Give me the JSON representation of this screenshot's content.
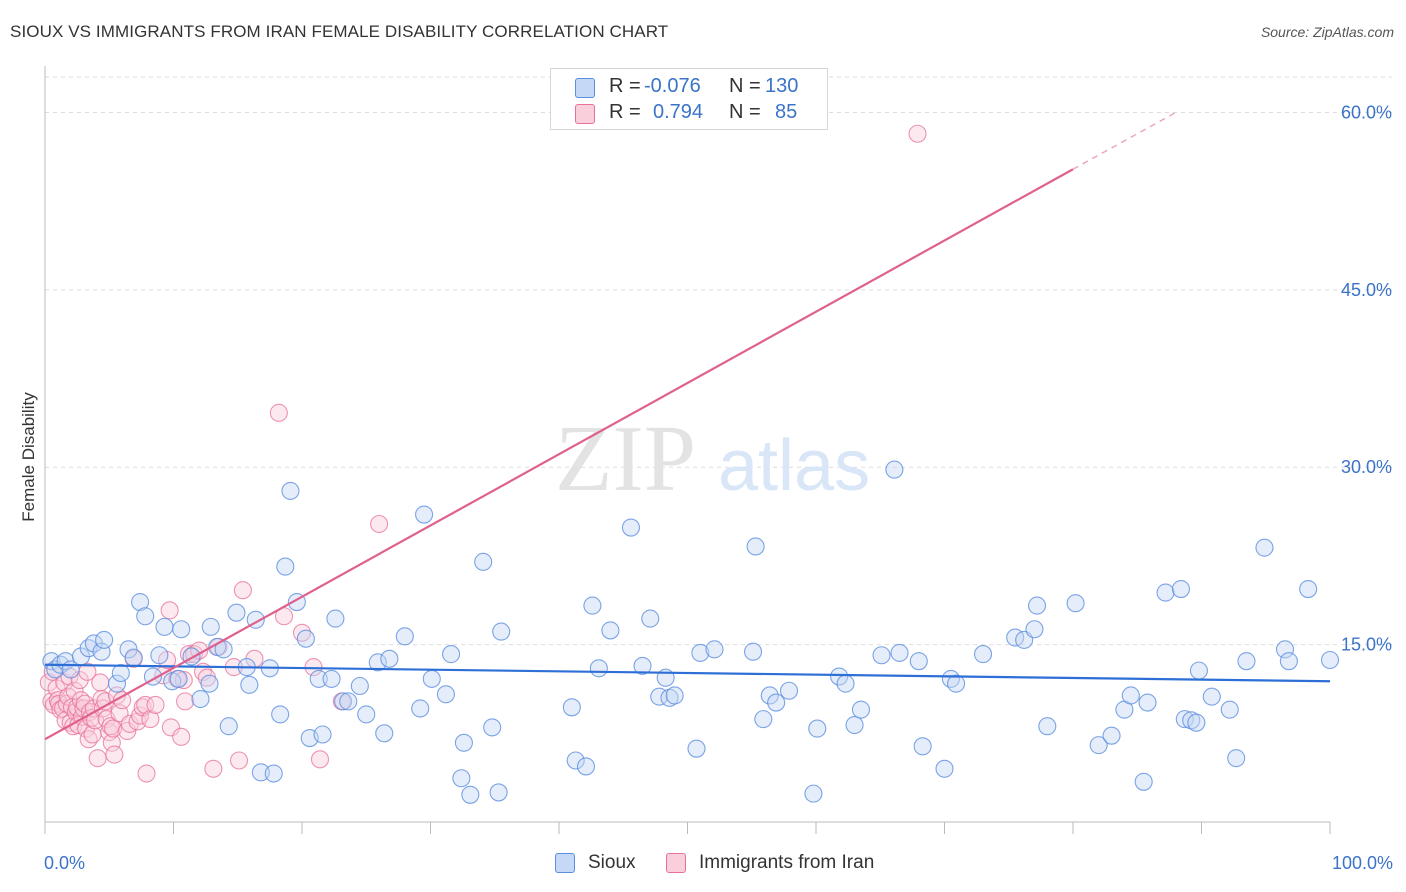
{
  "title": "SIOUX VS IMMIGRANTS FROM IRAN FEMALE DISABILITY CORRELATION CHART",
  "source": "Source: ZipAtlas.com",
  "watermark": {
    "zip": "ZIP",
    "atlas": "atlas"
  },
  "colors": {
    "sioux": "#5b8fe0",
    "sioux_fill": "#c5d8f5",
    "iran": "#e8709a",
    "iran_fill": "#f9cfdc",
    "axis_text": "#3b73c9",
    "grid": "#dddddd"
  },
  "legend_top": {
    "rows": [
      {
        "series": "Sioux",
        "r_label": "R =",
        "r_value": "-0.076",
        "n_label": "N =",
        "n_value": "130"
      },
      {
        "series": "Immigrants from Iran",
        "r_label": "R =",
        "r_value": "0.794",
        "n_label": "N =",
        "n_value": "85"
      }
    ]
  },
  "legend_bottom": [
    "Sioux",
    "Immigrants from Iran"
  ],
  "chart_data": {
    "type": "scatter",
    "title": "SIOUX VS IMMIGRANTS FROM IRAN FEMALE DISABILITY CORRELATION CHART",
    "xlabel": "",
    "ylabel": "Female Disability",
    "xlim": [
      0,
      100
    ],
    "ylim": [
      0,
      63
    ],
    "x_tick_labels": [
      "0.0%",
      "100.0%"
    ],
    "y_ticks": [
      15,
      30,
      45,
      60
    ],
    "y_tick_labels": [
      "15.0%",
      "30.0%",
      "45.0%",
      "60.0%"
    ],
    "grid": true,
    "series": [
      {
        "name": "Sioux",
        "r": -0.076,
        "n": 130,
        "trend": {
          "x0": 0,
          "y0": 13.3,
          "x1": 100,
          "y1": 11.9
        },
        "points": [
          [
            0.5,
            13.6
          ],
          [
            0.8,
            12.9
          ],
          [
            1.2,
            13.3
          ],
          [
            1.6,
            13.6
          ],
          [
            2.0,
            12.9
          ],
          [
            2.8,
            14.0
          ],
          [
            3.4,
            14.7
          ],
          [
            3.8,
            15.1
          ],
          [
            4.4,
            14.4
          ],
          [
            4.6,
            15.4
          ],
          [
            5.6,
            11.7
          ],
          [
            5.9,
            12.6
          ],
          [
            6.5,
            14.6
          ],
          [
            6.9,
            13.9
          ],
          [
            7.4,
            18.6
          ],
          [
            7.8,
            17.4
          ],
          [
            8.4,
            12.3
          ],
          [
            8.9,
            14.1
          ],
          [
            9.3,
            16.5
          ],
          [
            9.9,
            11.9
          ],
          [
            10.4,
            12.1
          ],
          [
            10.6,
            16.3
          ],
          [
            11.4,
            14.0
          ],
          [
            12.1,
            10.4
          ],
          [
            12.8,
            11.7
          ],
          [
            12.9,
            16.5
          ],
          [
            13.4,
            14.8
          ],
          [
            13.9,
            14.6
          ],
          [
            14.3,
            8.1
          ],
          [
            14.9,
            17.7
          ],
          [
            15.7,
            13.1
          ],
          [
            15.9,
            11.6
          ],
          [
            16.4,
            17.1
          ],
          [
            16.8,
            4.2
          ],
          [
            17.5,
            13.0
          ],
          [
            17.8,
            4.1
          ],
          [
            18.3,
            9.1
          ],
          [
            18.7,
            21.6
          ],
          [
            19.1,
            28.0
          ],
          [
            19.6,
            18.6
          ],
          [
            20.3,
            15.5
          ],
          [
            20.6,
            7.1
          ],
          [
            21.3,
            12.1
          ],
          [
            21.6,
            7.4
          ],
          [
            22.3,
            12.1
          ],
          [
            22.6,
            17.2
          ],
          [
            23.2,
            10.2
          ],
          [
            23.6,
            10.2
          ],
          [
            24.5,
            11.5
          ],
          [
            25.0,
            9.1
          ],
          [
            25.9,
            13.5
          ],
          [
            26.4,
            7.5
          ],
          [
            26.8,
            13.8
          ],
          [
            28.0,
            15.7
          ],
          [
            29.2,
            9.6
          ],
          [
            29.5,
            26.0
          ],
          [
            30.1,
            12.1
          ],
          [
            31.2,
            10.8
          ],
          [
            31.6,
            14.2
          ],
          [
            32.4,
            3.7
          ],
          [
            32.6,
            6.7
          ],
          [
            33.1,
            2.3
          ],
          [
            34.1,
            22.0
          ],
          [
            34.8,
            8.0
          ],
          [
            35.3,
            2.5
          ],
          [
            35.5,
            16.1
          ],
          [
            41.0,
            9.7
          ],
          [
            41.3,
            5.2
          ],
          [
            42.1,
            4.7
          ],
          [
            42.6,
            18.3
          ],
          [
            43.1,
            13.0
          ],
          [
            44.0,
            16.2
          ],
          [
            45.6,
            24.9
          ],
          [
            46.5,
            13.2
          ],
          [
            47.1,
            17.2
          ],
          [
            47.8,
            10.6
          ],
          [
            48.3,
            12.2
          ],
          [
            48.6,
            10.5
          ],
          [
            49.0,
            10.7
          ],
          [
            50.7,
            6.2
          ],
          [
            51.0,
            14.3
          ],
          [
            52.1,
            14.6
          ],
          [
            55.1,
            14.4
          ],
          [
            55.3,
            23.3
          ],
          [
            55.9,
            8.7
          ],
          [
            56.4,
            10.7
          ],
          [
            56.9,
            10.1
          ],
          [
            57.9,
            11.1
          ],
          [
            60.1,
            7.9
          ],
          [
            59.8,
            2.4
          ],
          [
            61.8,
            12.3
          ],
          [
            62.3,
            11.7
          ],
          [
            63.0,
            8.2
          ],
          [
            63.5,
            9.5
          ],
          [
            65.1,
            14.1
          ],
          [
            66.1,
            29.8
          ],
          [
            66.5,
            14.3
          ],
          [
            68.0,
            13.6
          ],
          [
            68.3,
            6.4
          ],
          [
            70.0,
            4.5
          ],
          [
            70.5,
            12.1
          ],
          [
            70.9,
            11.7
          ],
          [
            73.0,
            14.2
          ],
          [
            75.5,
            15.6
          ],
          [
            76.2,
            15.4
          ],
          [
            77.0,
            16.3
          ],
          [
            77.2,
            18.3
          ],
          [
            78.0,
            8.1
          ],
          [
            80.2,
            18.5
          ],
          [
            82.0,
            6.5
          ],
          [
            83.0,
            7.3
          ],
          [
            84.0,
            9.5
          ],
          [
            84.5,
            10.7
          ],
          [
            85.5,
            3.4
          ],
          [
            85.8,
            10.1
          ],
          [
            87.2,
            19.4
          ],
          [
            88.4,
            19.7
          ],
          [
            88.7,
            8.7
          ],
          [
            89.2,
            8.6
          ],
          [
            89.6,
            8.4
          ],
          [
            89.8,
            12.8
          ],
          [
            90.8,
            10.6
          ],
          [
            92.2,
            9.5
          ],
          [
            92.7,
            5.4
          ],
          [
            93.5,
            13.6
          ],
          [
            94.9,
            23.2
          ],
          [
            96.5,
            14.6
          ],
          [
            96.8,
            13.6
          ],
          [
            98.3,
            19.7
          ],
          [
            100.0,
            13.7
          ]
        ]
      },
      {
        "name": "Immigrants from Iran",
        "r": 0.794,
        "n": 85,
        "trend": {
          "x0": 0,
          "y0": 7.0,
          "x1": 80,
          "y1": 55.2,
          "dash_x1": 88,
          "dash_y1": 60.0
        },
        "points": [
          [
            0.3,
            11.8
          ],
          [
            0.5,
            10.2
          ],
          [
            0.6,
            12.7
          ],
          [
            0.7,
            9.9
          ],
          [
            0.9,
            11.3
          ],
          [
            1.0,
            10.3
          ],
          [
            1.1,
            10.0
          ],
          [
            1.2,
            9.5
          ],
          [
            1.4,
            9.6
          ],
          [
            1.5,
            11.8
          ],
          [
            1.6,
            8.6
          ],
          [
            1.7,
            10.0
          ],
          [
            1.8,
            10.6
          ],
          [
            1.9,
            12.3
          ],
          [
            2.0,
            8.4
          ],
          [
            2.1,
            9.7
          ],
          [
            2.2,
            8.1
          ],
          [
            2.3,
            11.1
          ],
          [
            2.4,
            9.3
          ],
          [
            2.5,
            9.7
          ],
          [
            2.6,
            8.2
          ],
          [
            2.7,
            12.0
          ],
          [
            2.8,
            10.3
          ],
          [
            2.9,
            8.9
          ],
          [
            3.0,
            9.6
          ],
          [
            3.1,
            10.0
          ],
          [
            3.2,
            7.9
          ],
          [
            3.3,
            12.7
          ],
          [
            3.4,
            7.0
          ],
          [
            3.5,
            9.3
          ],
          [
            3.6,
            8.8
          ],
          [
            3.7,
            7.4
          ],
          [
            3.8,
            9.6
          ],
          [
            3.9,
            8.6
          ],
          [
            4.1,
            5.4
          ],
          [
            4.3,
            11.8
          ],
          [
            4.4,
            10.4
          ],
          [
            4.5,
            9.6
          ],
          [
            4.7,
            10.2
          ],
          [
            4.8,
            8.7
          ],
          [
            5.0,
            7.6
          ],
          [
            5.1,
            8.1
          ],
          [
            5.2,
            6.7
          ],
          [
            5.3,
            7.9
          ],
          [
            5.4,
            5.7
          ],
          [
            5.6,
            10.7
          ],
          [
            5.8,
            9.2
          ],
          [
            6.0,
            10.3
          ],
          [
            6.4,
            7.7
          ],
          [
            6.6,
            8.3
          ],
          [
            6.9,
            13.8
          ],
          [
            7.2,
            8.5
          ],
          [
            7.4,
            9.0
          ],
          [
            7.6,
            9.7
          ],
          [
            7.8,
            9.9
          ],
          [
            8.2,
            8.7
          ],
          [
            8.6,
            9.9
          ],
          [
            9.2,
            12.4
          ],
          [
            9.5,
            13.7
          ],
          [
            9.7,
            17.9
          ],
          [
            9.8,
            8.0
          ],
          [
            10.3,
            12.1
          ],
          [
            10.6,
            7.2
          ],
          [
            10.8,
            12.0
          ],
          [
            10.9,
            10.2
          ],
          [
            11.2,
            14.2
          ],
          [
            11.6,
            14.2
          ],
          [
            12.0,
            14.5
          ],
          [
            12.3,
            12.7
          ],
          [
            12.6,
            12.2
          ],
          [
            13.1,
            4.5
          ],
          [
            13.5,
            14.8
          ],
          [
            14.7,
            13.1
          ],
          [
            15.1,
            5.2
          ],
          [
            15.4,
            19.6
          ],
          [
            16.3,
            13.8
          ],
          [
            18.2,
            34.6
          ],
          [
            18.6,
            17.4
          ],
          [
            20.0,
            16.0
          ],
          [
            20.9,
            13.1
          ],
          [
            21.4,
            5.3
          ],
          [
            23.1,
            10.2
          ],
          [
            26.0,
            25.2
          ],
          [
            67.9,
            58.2
          ],
          [
            7.9,
            4.1
          ]
        ]
      }
    ]
  }
}
